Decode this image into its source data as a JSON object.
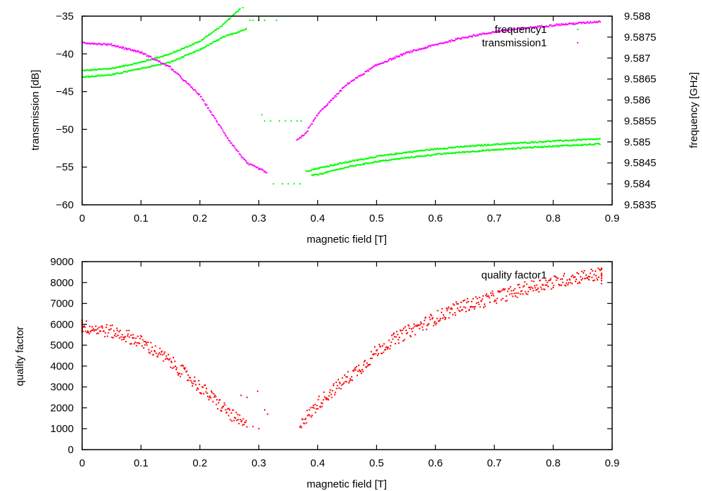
{
  "chart_data": [
    {
      "type": "scatter",
      "title": "",
      "xlabel": "magnetic field [T]",
      "ylabel": "transmission [dB]",
      "y2label": "frequency [GHz]",
      "xlim": [
        0,
        0.9
      ],
      "ylim": [
        -60,
        -35
      ],
      "y2lim": [
        9.5835,
        9.588
      ],
      "grid": false,
      "legend_position": "top-right",
      "xticks": [
        "0",
        "0.1",
        "0.2",
        "0.3",
        "0.4",
        "0.5",
        "0.6",
        "0.7",
        "0.8",
        "0.9"
      ],
      "yticks": [
        "-35",
        "-40",
        "-45",
        "-50",
        "-55",
        "-60"
      ],
      "y2ticks": [
        "9.588",
        "9.5875",
        "9.587",
        "9.5865",
        "9.586",
        "9.5855",
        "9.585",
        "9.5845",
        "9.584",
        "9.5835"
      ],
      "series": [
        {
          "name": "frequency1",
          "axis": "y2",
          "color": "#00ff00",
          "branches": [
            {
              "x": [
                0,
                0.05,
                0.1,
                0.15,
                0.2,
                0.24,
                0.27
              ],
              "y": [
                9.5867,
                9.58675,
                9.5869,
                9.5871,
                9.5874,
                9.5878,
                9.5882
              ]
            },
            {
              "x": [
                0,
                0.05,
                0.1,
                0.15,
                0.2,
                0.24,
                0.28
              ],
              "y": [
                9.58655,
                9.5866,
                9.58675,
                9.5869,
                9.5872,
                9.5875,
                9.5877
              ]
            },
            {
              "x": [
                0.38,
                0.4,
                0.45,
                0.5,
                0.55,
                0.6,
                0.65,
                0.7,
                0.75,
                0.8,
                0.85,
                0.88
              ],
              "y": [
                9.5843,
                9.58437,
                9.58452,
                9.58465,
                9.58475,
                9.58483,
                9.58489,
                9.58494,
                9.58498,
                9.58502,
                9.58505,
                9.58507
              ]
            },
            {
              "x": [
                0.39,
                0.4,
                0.45,
                0.5,
                0.55,
                0.6,
                0.65,
                0.7,
                0.75,
                0.8,
                0.85,
                0.88
              ],
              "y": [
                9.5842,
                9.58422,
                9.5844,
                9.58453,
                9.58462,
                9.5847,
                9.58476,
                9.58481,
                9.58486,
                9.5849,
                9.58493,
                9.58495
              ]
            }
          ],
          "outliers": {
            "x": [
              0.273,
              0.285,
              0.29,
              0.3,
              0.31,
              0.33,
              0.305,
              0.31,
              0.32,
              0.335,
              0.345,
              0.355,
              0.365,
              0.372,
              0.325,
              0.34,
              0.35,
              0.36,
              0.37
            ],
            "y": [
              9.5882,
              9.5879,
              9.5879,
              9.5879,
              9.5879,
              9.5879,
              9.58565,
              9.5855,
              9.5855,
              9.5855,
              9.5855,
              9.5855,
              9.5855,
              9.5855,
              9.584,
              9.584,
              9.584,
              9.584,
              9.584
            ]
          }
        },
        {
          "name": "transmission1",
          "axis": "y",
          "color": "#ff00ff",
          "branches": [
            {
              "x": [
                0,
                0.05,
                0.1,
                0.15,
                0.2,
                0.25,
                0.28,
                0.3,
                0.315
              ],
              "y": [
                -38.5,
                -38.8,
                -39.8,
                -41.8,
                -45.5,
                -51.5,
                -54.5,
                -55.2,
                -55.8
              ]
            },
            {
              "x": [
                0.365,
                0.38,
                0.4,
                0.45,
                0.5,
                0.55,
                0.6,
                0.65,
                0.7,
                0.75,
                0.8,
                0.85,
                0.88
              ],
              "y": [
                -51.5,
                -50.5,
                -48.0,
                -44.0,
                -41.5,
                -39.9,
                -38.8,
                -37.8,
                -37.1,
                -36.6,
                -36.2,
                -35.9,
                -35.7
              ]
            }
          ]
        }
      ]
    },
    {
      "type": "scatter",
      "title": "",
      "xlabel": "magnetic field [T]",
      "ylabel": "quality factor",
      "xlim": [
        0,
        0.9
      ],
      "ylim": [
        0,
        9000
      ],
      "grid": false,
      "legend_position": "top-right",
      "xticks": [
        "0",
        "0.1",
        "0.2",
        "0.3",
        "0.4",
        "0.5",
        "0.6",
        "0.7",
        "0.8",
        "0.9"
      ],
      "yticks": [
        "9000",
        "8000",
        "7000",
        "6000",
        "5000",
        "4000",
        "3000",
        "2000",
        "1000",
        "0"
      ],
      "series": [
        {
          "name": "quality factor1",
          "color": "#ff0000",
          "branches": [
            {
              "x": [
                0,
                0.02,
                0.05,
                0.08,
                0.1,
                0.12,
                0.15,
                0.18,
                0.2,
                0.22,
                0.24,
                0.26,
                0.28
              ],
              "y": [
                5900,
                5800,
                5650,
                5400,
                5150,
                4800,
                4200,
                3500,
                3000,
                2500,
                2000,
                1500,
                1100
              ]
            },
            {
              "x": [
                0.37,
                0.39,
                0.4,
                0.42,
                0.45,
                0.48,
                0.5,
                0.52,
                0.55,
                0.58,
                0.6,
                0.63,
                0.65,
                0.68,
                0.7,
                0.73,
                0.75,
                0.78,
                0.8,
                0.83,
                0.85,
                0.88
              ],
              "y": [
                1300,
                1800,
                2200,
                2700,
                3400,
                4100,
                4700,
                5100,
                5600,
                6000,
                6300,
                6700,
                6900,
                7100,
                7300,
                7500,
                7700,
                7900,
                8000,
                8200,
                8300,
                8400
              ]
            }
          ],
          "outliers": {
            "x": [
              0.27,
              0.28,
              0.29,
              0.3,
              0.31,
              0.315,
              0.298
            ],
            "y": [
              2600,
              2500,
              1100,
              1000,
              1900,
              1700,
              2800
            ]
          }
        }
      ]
    }
  ]
}
